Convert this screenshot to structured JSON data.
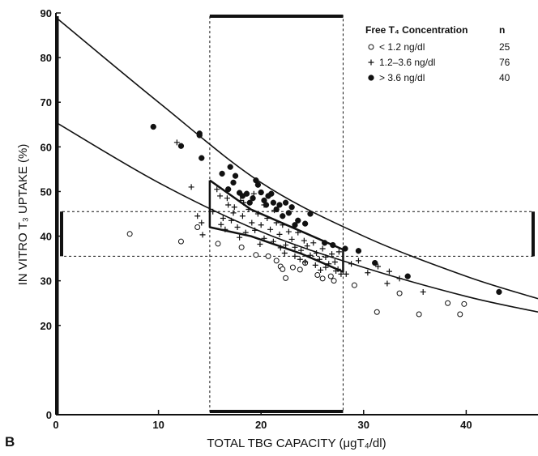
{
  "chart_data": {
    "type": "scatter",
    "panel_label": "B",
    "xlabel": "TOTAL TBG CAPACITY (μgT₄/dl)",
    "ylabel": "IN VITRO T₃ UPTAKE (%)",
    "xlim": [
      0,
      47
    ],
    "ylim": [
      0,
      90
    ],
    "x_ticks": [
      "0",
      "10",
      "20",
      "30",
      "40"
    ],
    "y_ticks": [
      "0",
      "20",
      "30",
      "40",
      "50",
      "60",
      "70",
      "80",
      "90"
    ],
    "grid": false,
    "legend": {
      "position": "top-right",
      "header_label": "Free T₄ Concentration",
      "header_n": "n",
      "entries": [
        {
          "marker": "open-circle",
          "label": "< 1.2 ng/dl",
          "n": "25"
        },
        {
          "marker": "plus",
          "label": "1.2–3.6 ng/dl",
          "n": "76"
        },
        {
          "marker": "filled-circle",
          "label": "> 3.6 ng/dl",
          "n": "40"
        }
      ]
    },
    "normal_range_x": [
      15,
      28
    ],
    "normal_range_y": [
      35.5,
      45.5
    ],
    "curves": [
      {
        "name": "upper",
        "points": [
          [
            0,
            89
          ],
          [
            10,
            70
          ],
          [
            20,
            52
          ],
          [
            30,
            40
          ],
          [
            40,
            31
          ],
          [
            47,
            26
          ]
        ]
      },
      {
        "name": "lower",
        "points": [
          [
            0,
            65.5
          ],
          [
            10,
            52
          ],
          [
            20,
            41
          ],
          [
            30,
            33
          ],
          [
            40,
            26.5
          ],
          [
            47,
            23
          ]
        ]
      }
    ],
    "boundary": [
      [
        15,
        52.5
      ],
      [
        15,
        42
      ],
      [
        19,
        40
      ],
      [
        24,
        36
      ],
      [
        28,
        32
      ],
      [
        28,
        37
      ],
      [
        24,
        41
      ],
      [
        19,
        46
      ],
      [
        15,
        52.5
      ]
    ],
    "series": [
      {
        "name": "< 1.2 ng/dl",
        "marker": "open-circle",
        "x": [
          7.2,
          12.2,
          13.8,
          15.8,
          18.1,
          19.5,
          20.7,
          21.5,
          21.9,
          22.1,
          22.4,
          23.1,
          23.8,
          24.3,
          25.5,
          26,
          26.8,
          27.1,
          29.1,
          31.3,
          33.5,
          35.4,
          38.2,
          39.4,
          39.8
        ],
        "y": [
          40.5,
          38.8,
          42,
          38.3,
          37.5,
          35.8,
          35.5,
          34.5,
          33.2,
          32.6,
          30.6,
          33,
          32.5,
          34,
          31.3,
          30.5,
          31,
          30,
          29,
          23,
          27.2,
          22.5,
          25,
          22.5,
          24.8
        ]
      },
      {
        "name": "1.2–3.6 ng/dl",
        "marker": "plus",
        "x": [
          11.8,
          13.2,
          13.8,
          14.2,
          15.3,
          16,
          16.3,
          16.5,
          16.8,
          17.1,
          17.4,
          17.7,
          18,
          18.2,
          18.5,
          18.8,
          19.1,
          19.4,
          19.7,
          20,
          20.3,
          20.6,
          20.9,
          21.2,
          21.5,
          21.8,
          22.1,
          22.4,
          22.7,
          23,
          23.3,
          23.6,
          23.9,
          24.2,
          24.5,
          24.8,
          25.1,
          25.4,
          25.7,
          26,
          26.3,
          26.6,
          26.9,
          27.2,
          27.5,
          27.8,
          15.7,
          16.7,
          17.3,
          18.3,
          19.3,
          20.3,
          21.3,
          22.3,
          23.3,
          24.3,
          25.3,
          26.3,
          27.3,
          28.3,
          29.5,
          31.4,
          32.5,
          33.5,
          35.8,
          14.3,
          16.1,
          17.9,
          19.9,
          21.9,
          23.8,
          25.8,
          27.6,
          28.8,
          30.4,
          32.3
        ],
        "y": [
          61,
          51,
          44.5,
          43,
          45.5,
          49,
          44,
          41.5,
          47,
          43.5,
          46.5,
          42,
          48,
          44.5,
          40.8,
          46,
          43,
          41.3,
          45,
          42.5,
          39.5,
          44,
          41.5,
          38.8,
          43,
          40.4,
          42.5,
          38,
          41,
          39.3,
          37.5,
          40.8,
          36.8,
          39,
          37.8,
          35.7,
          38.5,
          36.2,
          34.8,
          37.2,
          35.3,
          33.8,
          36,
          34.2,
          32.6,
          31.5,
          50.5,
          48.5,
          45.2,
          47.5,
          49.5,
          47,
          45.8,
          36.2,
          35.5,
          34.2,
          33.5,
          33,
          32.2,
          31.5,
          34.5,
          33.2,
          32.1,
          30.5,
          27.5,
          40.3,
          42.6,
          39.7,
          38.2,
          37.4,
          34.8,
          32.4,
          36.5,
          33.8,
          31.8,
          29.4
        ]
      },
      {
        "name": "> 3.6 ng/dl",
        "marker": "filled-circle",
        "x": [
          9.5,
          12.2,
          14,
          14,
          14.2,
          16.2,
          16.8,
          17,
          17.3,
          17.5,
          17.9,
          18.2,
          18.6,
          18.9,
          19.2,
          19.5,
          19.7,
          20,
          20.3,
          20.5,
          20.7,
          21,
          21.2,
          21.5,
          21.8,
          22.1,
          22.4,
          22.7,
          23,
          23.3,
          23.6,
          24.3,
          24.8,
          26.2,
          27,
          28.2,
          29.5,
          31.1,
          34.3,
          43.2
        ],
        "y": [
          64.5,
          60.2,
          63,
          62.6,
          57.5,
          54,
          50.5,
          55.5,
          52,
          53.5,
          49.7,
          49,
          49.5,
          47.5,
          48.5,
          52.5,
          51.5,
          49.8,
          48,
          47,
          49,
          49.5,
          47.5,
          46,
          47,
          44.5,
          47.5,
          45.2,
          46.5,
          42.5,
          43.5,
          42.8,
          45,
          38.5,
          38,
          37.2,
          36.7,
          34,
          31,
          27.5
        ]
      }
    ]
  }
}
